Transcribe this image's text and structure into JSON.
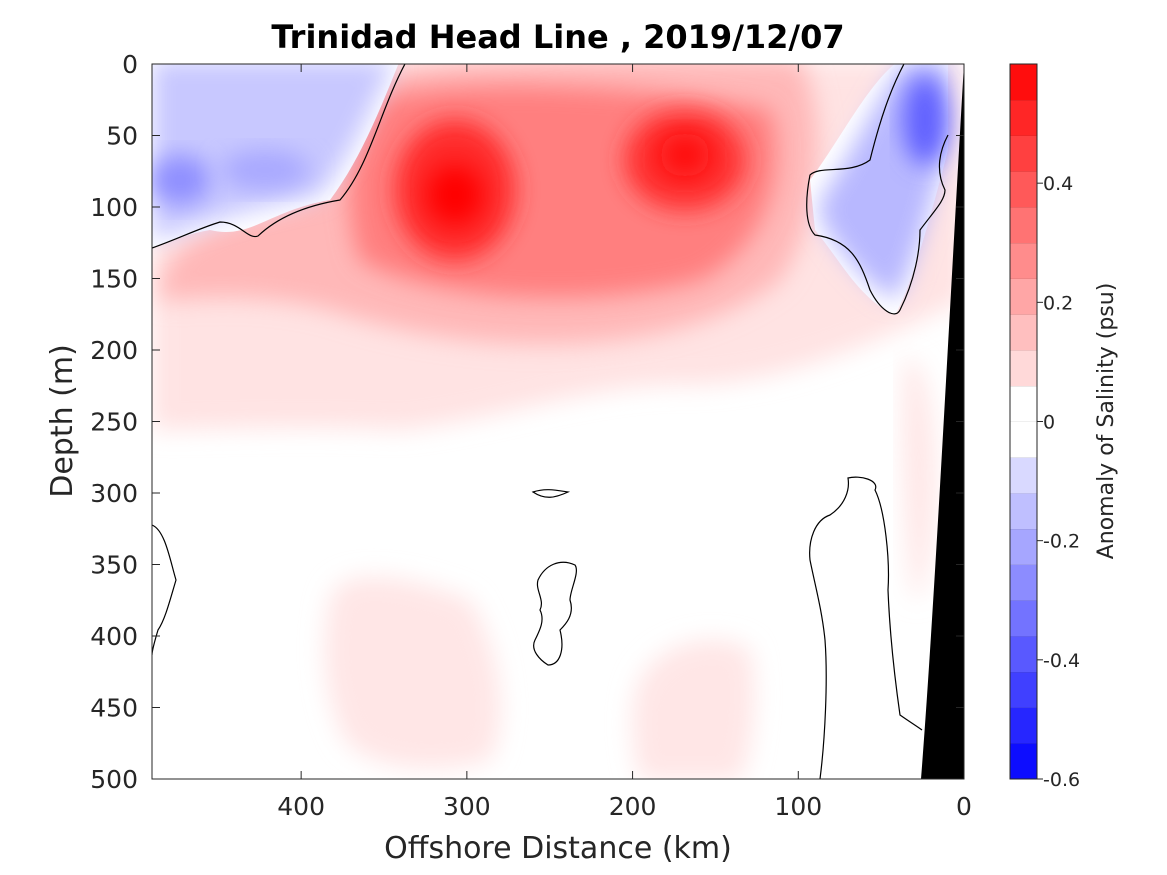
{
  "chart_data": {
    "type": "heatmap",
    "title": "Trinidad Head Line , 2019/12/07",
    "xlabel": "Offshore Distance (km)",
    "ylabel": "Depth (m)",
    "xlim": [
      490,
      0
    ],
    "ylim": [
      0,
      500
    ],
    "x_reversed": true,
    "y_reversed": true,
    "xticks": [
      400,
      300,
      200,
      100,
      0
    ],
    "yticks": [
      0,
      50,
      100,
      150,
      200,
      250,
      300,
      350,
      400,
      450,
      500
    ],
    "colorbar": {
      "label": "Anomaly of Salinity (psu)",
      "range": [
        -0.6,
        0.6
      ],
      "levels": 20,
      "ticks": [
        0.4,
        0.2,
        0,
        -0.2,
        -0.4,
        -0.6
      ],
      "tick_labels": [
        "0.4",
        "0.2",
        "0",
        "-0.2",
        "-0.4",
        "-0.6"
      ],
      "negative_color": "#0000ff",
      "zero_color": "#ffffff",
      "positive_color": "#ff0000"
    },
    "contour_zero_color": "#000000",
    "bathymetry_color": "#000000",
    "features": [
      {
        "kind": "max",
        "x": 305,
        "depth": 95,
        "value": 0.58
      },
      {
        "kind": "max",
        "x": 170,
        "depth": 70,
        "value": 0.55
      },
      {
        "kind": "min",
        "x": 470,
        "depth": 80,
        "value": -0.2
      },
      {
        "kind": "min",
        "x": 40,
        "depth": 40,
        "value": -0.3
      }
    ]
  }
}
